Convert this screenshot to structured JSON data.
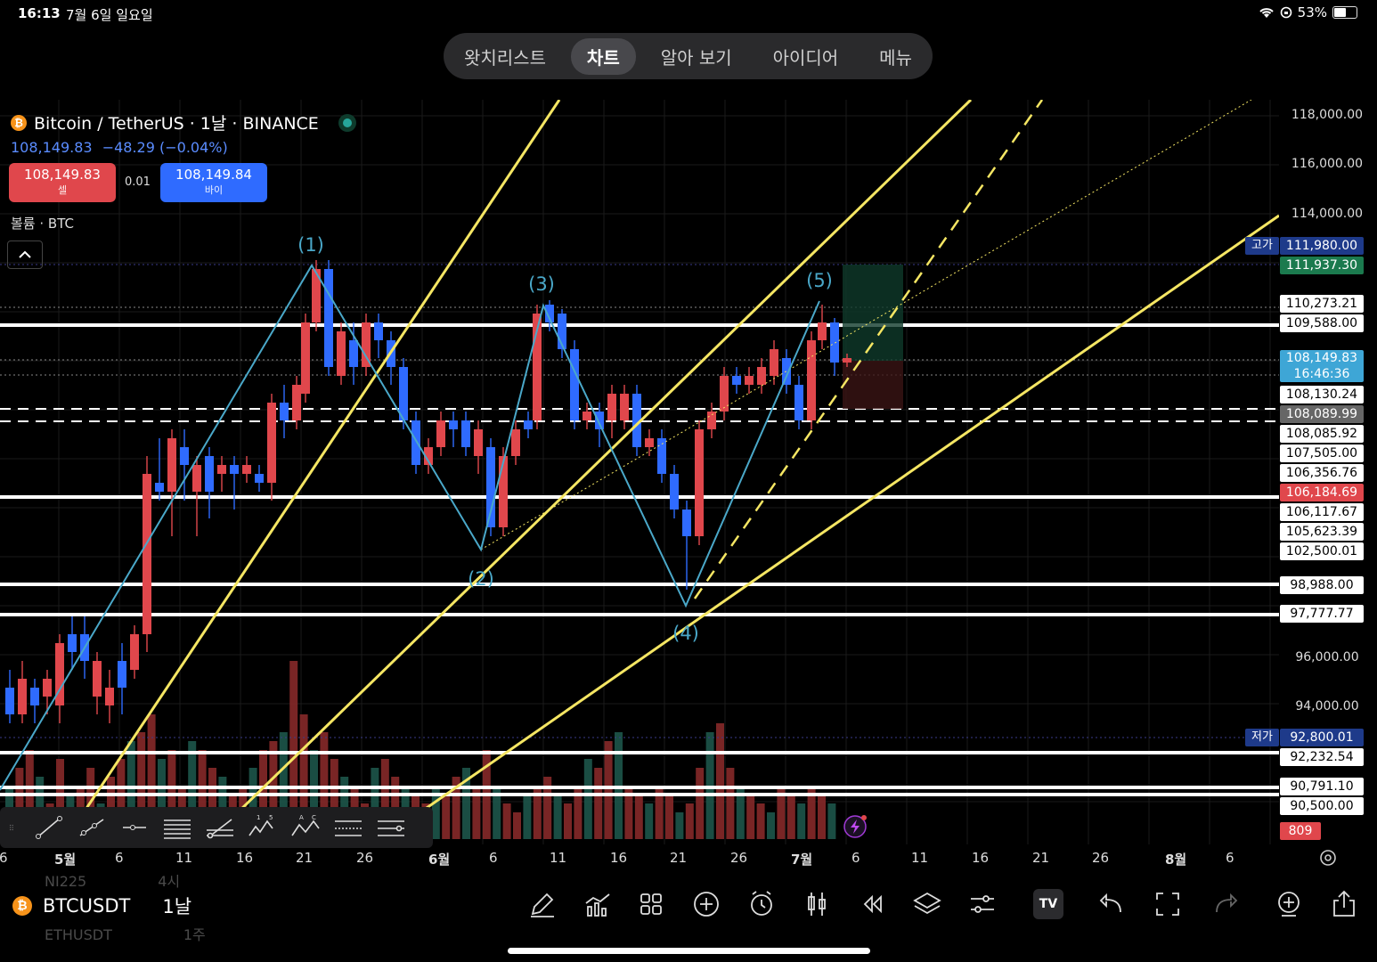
{
  "status_bar": {
    "time": "16:13",
    "date": "7월 6일 일요일",
    "battery": "53%"
  },
  "top_nav": {
    "tabs": [
      {
        "label": "왓치리스트",
        "active": false
      },
      {
        "label": "차트",
        "active": true
      },
      {
        "label": "알아 보기",
        "active": false
      },
      {
        "label": "아이디어",
        "active": false
      },
      {
        "label": "메뉴",
        "active": false
      }
    ]
  },
  "chart_header": {
    "title": "Bitcoin / TetherUS · 1날 · BINANCE",
    "last_price": "108,149.83",
    "change": "−48.29 (−0.04%)",
    "sell": {
      "price": "108,149.83",
      "label": "셀"
    },
    "buy": {
      "price": "108,149.84",
      "label": "바이"
    },
    "spread": "0.01",
    "volume_label": "볼륨 · BTC"
  },
  "wave_labels": [
    "(1)",
    "(2)",
    "(3)",
    "(4)",
    "(5)"
  ],
  "price_axis": {
    "ticks": [
      "118,000.00",
      "116,000.00",
      "114,000.00",
      "96,000.00",
      "94,000.00"
    ],
    "markers": [
      {
        "value": "111,980.00",
        "tag": "고가",
        "bg": "#1e3a8a"
      },
      {
        "value": "111,937.30",
        "bg": "#1b7a4e"
      },
      {
        "value": "110,273.21",
        "bg": "#ffffff",
        "fg": "#000"
      },
      {
        "value": "109,588.00",
        "bg": "#ffffff",
        "fg": "#000"
      },
      {
        "value": "108,149.83",
        "sub": "16:46:36",
        "bg": "#3ea6d6"
      },
      {
        "value": "108,130.24",
        "bg": "#ffffff",
        "fg": "#000"
      },
      {
        "value": "108,089.99",
        "bg": "#666666"
      },
      {
        "value": "108,085.92",
        "bg": "#ffffff",
        "fg": "#000"
      },
      {
        "value": "107,505.00",
        "bg": "#ffffff",
        "fg": "#000"
      },
      {
        "value": "106,356.76",
        "bg": "#ffffff",
        "fg": "#000"
      },
      {
        "value": "106,184.69",
        "bg": "#e0474c"
      },
      {
        "value": "106,117.67",
        "bg": "#ffffff",
        "fg": "#000"
      },
      {
        "value": "105,623.39",
        "bg": "#ffffff",
        "fg": "#000"
      },
      {
        "value": "102,500.01",
        "bg": "#ffffff",
        "fg": "#000"
      },
      {
        "value": "98,988.00",
        "bg": "#ffffff",
        "fg": "#000"
      },
      {
        "value": "97,777.77",
        "bg": "#ffffff",
        "fg": "#000"
      },
      {
        "value": "92,800.01",
        "tag": "저가",
        "bg": "#1e3a8a"
      },
      {
        "value": "92,232.54",
        "bg": "#ffffff",
        "fg": "#000"
      },
      {
        "value": "90,791.10",
        "bg": "#ffffff",
        "fg": "#000"
      },
      {
        "value": "90,500.00",
        "bg": "#ffffff",
        "fg": "#000"
      },
      {
        "value": "809",
        "bg": "#e0474c"
      }
    ]
  },
  "date_axis": [
    "6",
    "5월",
    "6",
    "11",
    "16",
    "21",
    "26",
    "6월",
    "6",
    "11",
    "16",
    "21",
    "26",
    "7월",
    "6",
    "11",
    "16",
    "21",
    "26",
    "8월",
    "6"
  ],
  "bottom_bar": {
    "symbol": "BTCUSDT",
    "interval": "1날",
    "ghost_above": [
      "NI225",
      "4시"
    ],
    "ghost_below": [
      "ETHUSDT",
      "1주"
    ]
  },
  "colors": {
    "up": "#e0474c",
    "down": "#2f6bff",
    "trendline": "#f5e663",
    "wave": "#4aa8c9",
    "vol_up": "#8e2b2b",
    "vol_down": "#1f5a4f"
  }
}
